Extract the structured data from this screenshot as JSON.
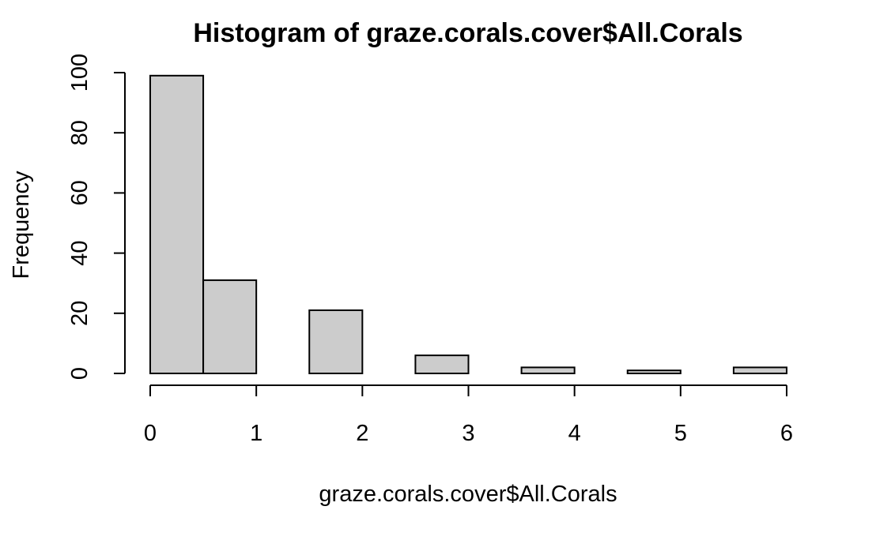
{
  "chart_data": {
    "type": "bar",
    "title": "Histogram of graze.corals.cover$All.Corals",
    "xlabel": "graze.corals.cover$All.Corals",
    "ylabel": "Frequency",
    "bins": [
      {
        "from": 0.0,
        "to": 0.5,
        "count": 99
      },
      {
        "from": 0.5,
        "to": 1.0,
        "count": 31
      },
      {
        "from": 1.0,
        "to": 1.5,
        "count": 0
      },
      {
        "from": 1.5,
        "to": 2.0,
        "count": 21
      },
      {
        "from": 2.0,
        "to": 2.5,
        "count": 0
      },
      {
        "from": 2.5,
        "to": 3.0,
        "count": 6
      },
      {
        "from": 3.0,
        "to": 3.5,
        "count": 0
      },
      {
        "from": 3.5,
        "to": 4.0,
        "count": 2
      },
      {
        "from": 4.0,
        "to": 4.5,
        "count": 0
      },
      {
        "from": 4.5,
        "to": 5.0,
        "count": 1
      },
      {
        "from": 5.0,
        "to": 5.5,
        "count": 0
      },
      {
        "from": 5.5,
        "to": 6.0,
        "count": 2
      }
    ],
    "xlim": [
      0,
      6
    ],
    "ylim": [
      0,
      100
    ],
    "x_ticks": [
      0,
      1,
      2,
      3,
      4,
      5,
      6
    ],
    "y_ticks": [
      0,
      20,
      40,
      60,
      80,
      100
    ],
    "bar_color": "#cccccc",
    "grid": false
  }
}
